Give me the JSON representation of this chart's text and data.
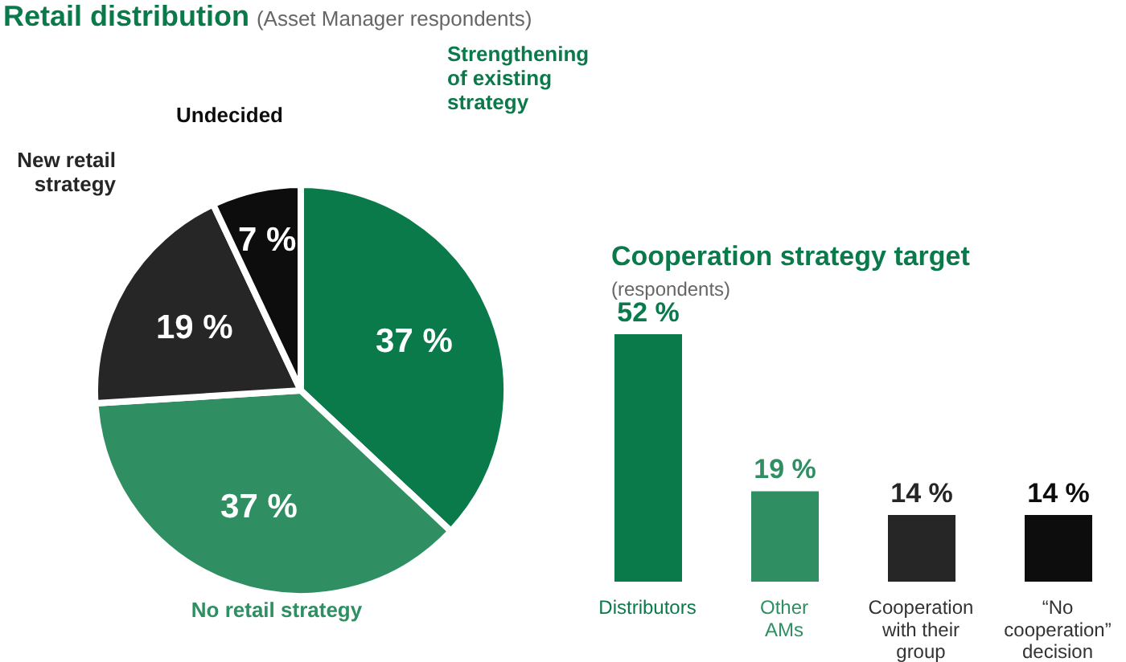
{
  "chart_data": [
    {
      "type": "pie",
      "title": "Retail distribution",
      "subtitle": "(Asset Manager respondents)",
      "categories": [
        "Strengthening\nof existing\nstrategy",
        "No retail strategy",
        "New retail\nstrategy",
        "Undecided"
      ],
      "values": [
        37,
        37,
        19,
        7
      ],
      "value_labels": [
        "37 %",
        "37 %",
        "19 %",
        "7 %"
      ],
      "colors": [
        "#0b7a4b",
        "#2f8f62",
        "#262626",
        "#0d0d0d"
      ]
    },
    {
      "type": "bar",
      "title": "Cooperation strategy target",
      "subtitle": "(respondents)",
      "categories": [
        "Distributors",
        "Other\nAMs",
        "Cooperation\nwith their\ngroup",
        "“No\ncooperation”\ndecision"
      ],
      "values": [
        52,
        19,
        14,
        14
      ],
      "value_labels": [
        "52 %",
        "19 %",
        "14 %",
        "14 %"
      ],
      "colors": [
        "#0b7a4b",
        "#2f8f62",
        "#262626",
        "#0d0d0d"
      ]
    }
  ]
}
